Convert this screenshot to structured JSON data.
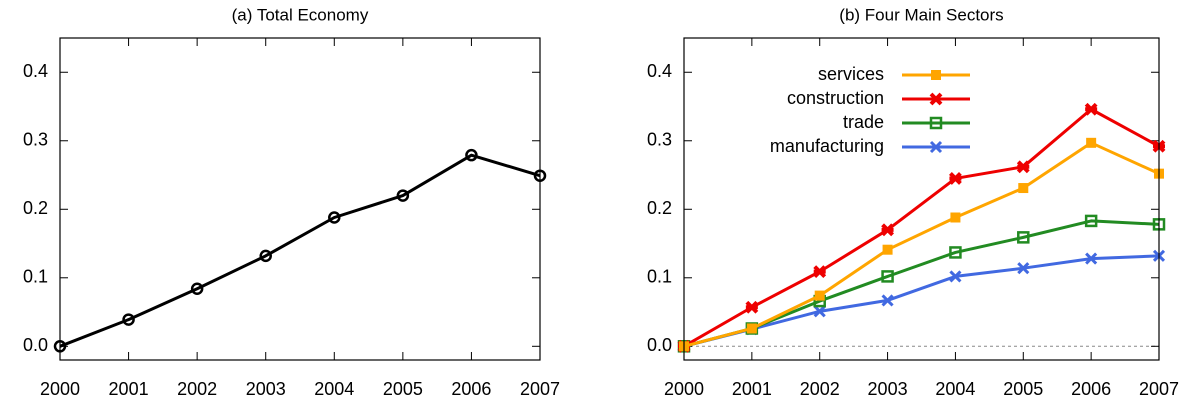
{
  "chart_data": [
    {
      "type": "line",
      "title": "(a) Total Economy",
      "x": [
        2000,
        2001,
        2002,
        2003,
        2004,
        2005,
        2006,
        2007
      ],
      "values": [
        0.0,
        0.039,
        0.084,
        0.132,
        0.188,
        0.22,
        0.279,
        0.249
      ],
      "color": "#000000",
      "marker": "circle",
      "xlim": [
        2000,
        2007
      ],
      "xticks": [
        2000,
        2001,
        2002,
        2003,
        2004,
        2005,
        2006,
        2007
      ],
      "ylim": [
        -0.02,
        0.45
      ],
      "yticks": [
        {
          "value": 0,
          "label": "0.0"
        },
        0.1,
        0.2,
        0.3,
        0.4
      ]
    },
    {
      "type": "line",
      "title": "(b) Four Main Sectors",
      "x": [
        2000,
        2001,
        2002,
        2003,
        2004,
        2005,
        2006,
        2007
      ],
      "series": [
        {
          "name": "services",
          "color": "#ffa500",
          "marker": "square",
          "values": [
            0.0,
            0.026,
            0.074,
            0.141,
            0.188,
            0.231,
            0.297,
            0.252
          ]
        },
        {
          "name": "construction",
          "color": "#ee0000",
          "marker": "star",
          "values": [
            0.0,
            0.057,
            0.109,
            0.17,
            0.245,
            0.262,
            0.346,
            0.292
          ]
        },
        {
          "name": "trade",
          "color": "#228b22",
          "marker": "open-square",
          "values": [
            0.0,
            0.026,
            0.066,
            0.102,
            0.137,
            0.159,
            0.183,
            0.178
          ]
        },
        {
          "name": "manufacturing",
          "color": "#4169e1",
          "marker": "cross",
          "values": [
            0.0,
            0.025,
            0.051,
            0.067,
            0.102,
            0.114,
            0.128,
            0.132
          ]
        }
      ],
      "legend": "top-left",
      "zero_line": true,
      "xlim": [
        2000,
        2007
      ],
      "xticks": [
        2000,
        2001,
        2002,
        2003,
        2004,
        2005,
        2006,
        2007
      ],
      "ylim": [
        -0.02,
        0.45
      ],
      "yticks": [
        {
          "value": 0,
          "label": "0.0"
        },
        0.1,
        0.2,
        0.3,
        0.4
      ]
    }
  ]
}
